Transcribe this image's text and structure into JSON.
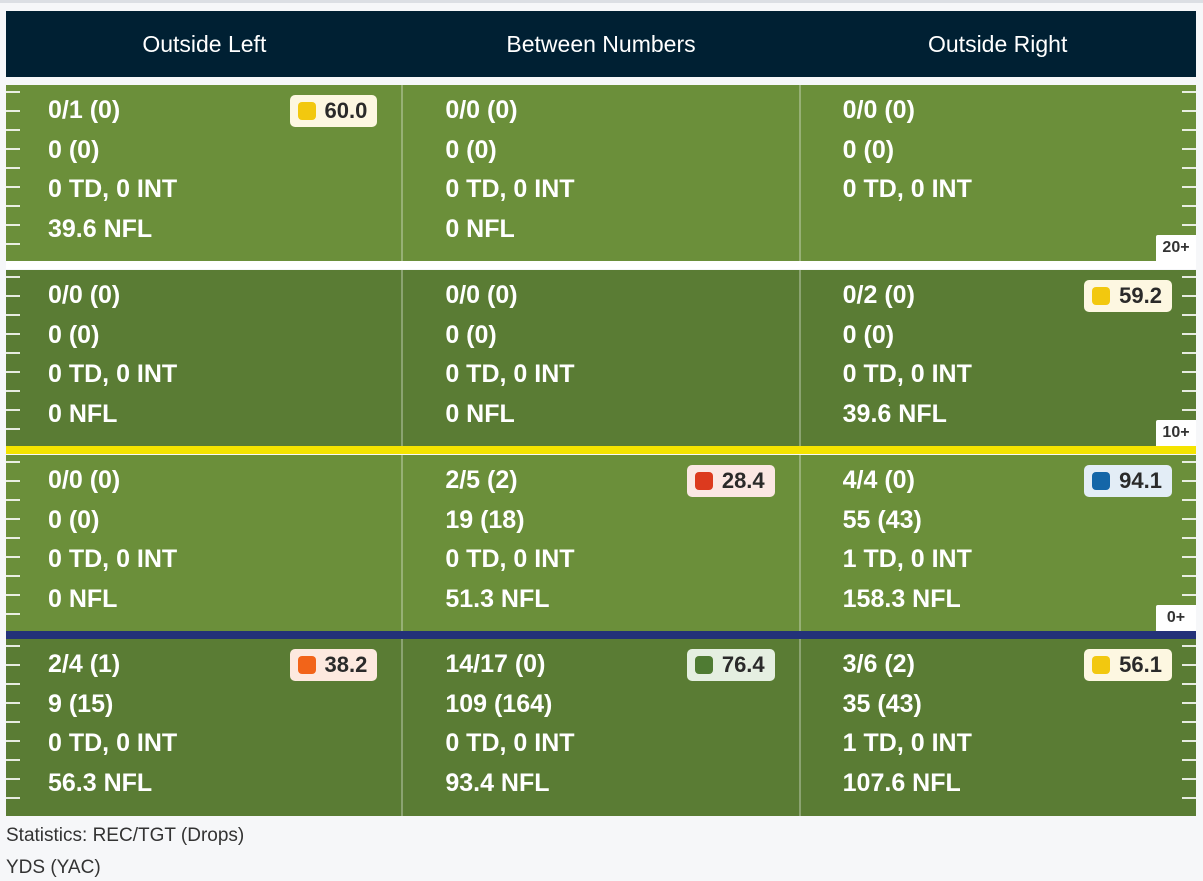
{
  "header": {
    "columns": [
      "Outside Left",
      "Between Numbers",
      "Outside Right"
    ]
  },
  "zones": [
    {
      "yard_label": "20+",
      "shade": "light",
      "cells": [
        {
          "lines": [
            "0/1 (0)",
            "0 (0)",
            "0 TD, 0 INT",
            "39.6 NFL"
          ],
          "grade": {
            "value": "60.0",
            "color": "#f2c80f",
            "bg": "#fdf7e1"
          }
        },
        {
          "lines": [
            "0/0 (0)",
            "0 (0)",
            "0 TD, 0 INT",
            "0 NFL"
          ],
          "grade": null
        },
        {
          "lines": [
            "0/0 (0)",
            "0 (0)",
            "0 TD, 0 INT",
            ""
          ],
          "grade": null
        }
      ]
    },
    {
      "yard_label": "10+",
      "shade": "dark",
      "cells": [
        {
          "lines": [
            "0/0 (0)",
            "0 (0)",
            "0 TD, 0 INT",
            "0 NFL"
          ],
          "grade": null
        },
        {
          "lines": [
            "0/0 (0)",
            "0 (0)",
            "0 TD, 0 INT",
            "0 NFL"
          ],
          "grade": null
        },
        {
          "lines": [
            "0/2 (0)",
            "0 (0)",
            "0 TD, 0 INT",
            "39.6 NFL"
          ],
          "grade": {
            "value": "59.2",
            "color": "#f2c80f",
            "bg": "#fdf7e1"
          }
        }
      ]
    },
    {
      "yard_label": "0+",
      "shade": "light",
      "cells": [
        {
          "lines": [
            "0/0 (0)",
            "0 (0)",
            "0 TD, 0 INT",
            "0 NFL"
          ],
          "grade": null
        },
        {
          "lines": [
            "2/5 (2)",
            "19 (18)",
            "0 TD, 0 INT",
            "51.3 NFL"
          ],
          "grade": {
            "value": "28.4",
            "color": "#dc3a1e",
            "bg": "#fbe7e3"
          }
        },
        {
          "lines": [
            "4/4 (0)",
            "55 (43)",
            "1 TD, 0 INT",
            "158.3 NFL"
          ],
          "grade": {
            "value": "94.1",
            "color": "#1466a8",
            "bg": "#e3edf6"
          }
        }
      ]
    },
    {
      "yard_label": "",
      "shade": "dark",
      "cells": [
        {
          "lines": [
            "2/4 (1)",
            "9 (15)",
            "0 TD, 0 INT",
            "56.3 NFL"
          ],
          "grade": {
            "value": "38.2",
            "color": "#f26419",
            "bg": "#fde9df"
          }
        },
        {
          "lines": [
            "14/17 (0)",
            "109 (164)",
            "0 TD, 0 INT",
            "93.4 NFL"
          ],
          "grade": {
            "value": "76.4",
            "color": "#4f7b33",
            "bg": "#e5efe1"
          }
        },
        {
          "lines": [
            "3/6 (2)",
            "35 (43)",
            "1 TD, 0 INT",
            "107.6 NFL"
          ],
          "grade": {
            "value": "56.1",
            "color": "#f2c80f",
            "bg": "#fdf7e1"
          }
        }
      ]
    }
  ],
  "dividers": [
    {
      "color": "#ffffff"
    },
    {
      "color": "#f5e400"
    },
    {
      "color": "#233179"
    }
  ],
  "legend": {
    "line1": "Statistics: REC/TGT (Drops)",
    "line2": "YDS (YAC)"
  }
}
